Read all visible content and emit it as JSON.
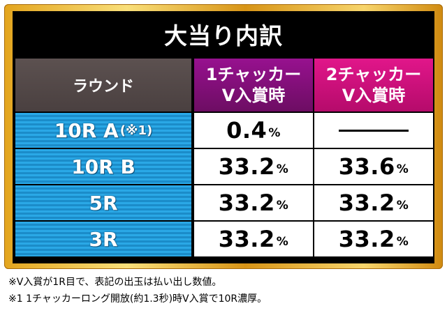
{
  "title": "大当り内訳",
  "header": {
    "round_label": "ラウンド",
    "col1_line1": "1チャッカー",
    "col1_line2": "V入賞時",
    "col2_line1": "2チャッカー",
    "col2_line2": "V入賞時"
  },
  "rows": [
    {
      "label": "10R A",
      "note": "(※1)",
      "col1": "0.4",
      "col2": ""
    },
    {
      "label": "10R B",
      "note": "",
      "col1": "33.2",
      "col2": "33.6"
    },
    {
      "label": "5R",
      "note": "",
      "col1": "33.2",
      "col2": "33.2"
    },
    {
      "label": "3R",
      "note": "",
      "col1": "33.2",
      "col2": "33.2"
    }
  ],
  "unit": "%",
  "footnotes": [
    "※V入賞が1R目で、表記の出玉は払い出し数値。",
    "※1 1チャッカーロング開放(約1.3秒)時V入賞で10R濃厚。"
  ],
  "colors": {
    "frame_gold": "#e3a51e",
    "header_gray": "#4a4040",
    "col1_purple": "#97118f",
    "col2_magenta": "#e1168a",
    "row_blue": "#2aa8e6"
  }
}
